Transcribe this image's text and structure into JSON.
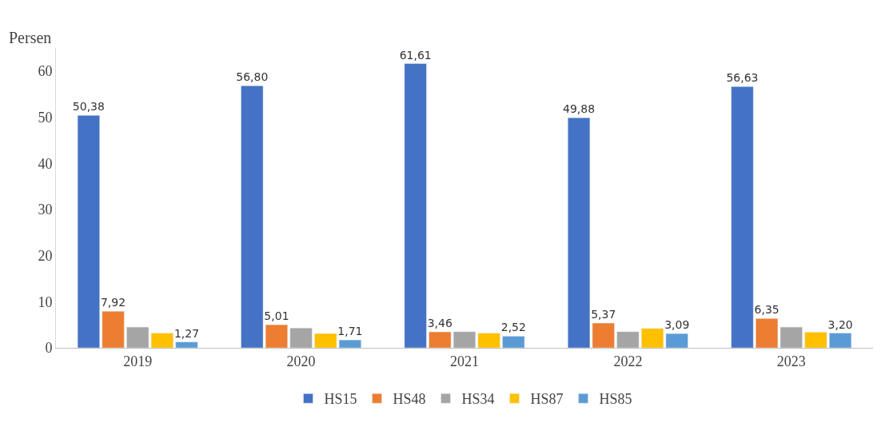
{
  "chart_data": {
    "type": "bar",
    "ylabel": "Persen",
    "categories": [
      "2019",
      "2020",
      "2021",
      "2022",
      "2023"
    ],
    "series": [
      {
        "name": "HS15",
        "color": "#4472c4",
        "values": [
          50.38,
          56.8,
          61.61,
          49.88,
          56.63
        ],
        "value_labels": [
          "50,38",
          "56,80",
          "61,61",
          "49,88",
          "56,63"
        ]
      },
      {
        "name": "HS48",
        "color": "#ed7d31",
        "values": [
          7.92,
          5.01,
          3.46,
          5.37,
          6.35
        ],
        "value_labels": [
          "7,92",
          "5,01",
          "3,46",
          "5,37",
          "6,35"
        ]
      },
      {
        "name": "HS34",
        "color": "#a5a5a5",
        "values": [
          4.5,
          4.3,
          3.5,
          3.5,
          4.5
        ]
      },
      {
        "name": "HS87",
        "color": "#ffc000",
        "values": [
          3.2,
          3.1,
          3.2,
          4.2,
          3.4
        ]
      },
      {
        "name": "HS85",
        "color": "#5b9bd5",
        "values": [
          1.27,
          1.71,
          2.52,
          3.09,
          3.2
        ],
        "value_labels": [
          "1,27",
          "1,71",
          "2,52",
          "3,09",
          "3,20"
        ]
      }
    ],
    "ylim": [
      0,
      65
    ],
    "yticks": [
      0,
      10,
      20,
      30,
      40,
      50,
      60
    ],
    "legend": "bottom"
  }
}
